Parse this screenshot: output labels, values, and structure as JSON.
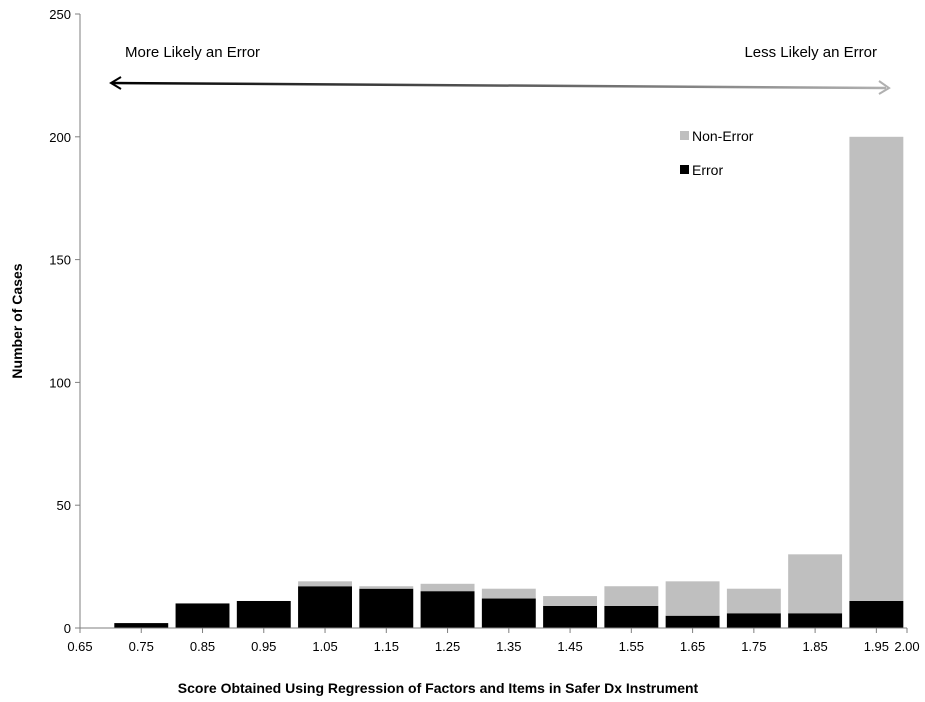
{
  "chart_data": {
    "type": "bar",
    "stacked": true,
    "title": "",
    "xlabel": "Score Obtained Using Regression of Factors and Items in Safer Dx Instrument",
    "ylabel": "Number of Cases",
    "xlim": [
      0.65,
      2.0
    ],
    "ylim": [
      0,
      250
    ],
    "x_ticks": [
      "0.65",
      "0.75",
      "0.85",
      "0.95",
      "1.05",
      "1.15",
      "1.25",
      "1.35",
      "1.45",
      "1.55",
      "1.65",
      "1.75",
      "1.85",
      "1.95",
      "2.00"
    ],
    "y_ticks": [
      "0",
      "50",
      "100",
      "150",
      "200",
      "250"
    ],
    "bin_width": 0.1,
    "x": [
      0.75,
      0.85,
      0.95,
      1.05,
      1.15,
      1.25,
      1.35,
      1.45,
      1.55,
      1.65,
      1.75,
      1.85,
      1.95
    ],
    "series": [
      {
        "name": "Error",
        "color": "#000000",
        "values": [
          2,
          10,
          11,
          17,
          16,
          15,
          12,
          9,
          9,
          5,
          6,
          6,
          11
        ]
      },
      {
        "name": "Non-Error",
        "color": "#bfbfbf",
        "values": [
          0,
          0,
          0,
          2,
          1,
          3,
          4,
          4,
          8,
          14,
          10,
          24,
          189
        ]
      }
    ],
    "legend": {
      "placement": "top-right",
      "order": [
        "Non-Error",
        "Error"
      ]
    },
    "grid": false,
    "annotations": {
      "left_label": "More Likely an Error",
      "right_label": "Less Likely an Error",
      "arrow": "double-headed gradient arrow from dark (left) to light gray (right)"
    }
  }
}
